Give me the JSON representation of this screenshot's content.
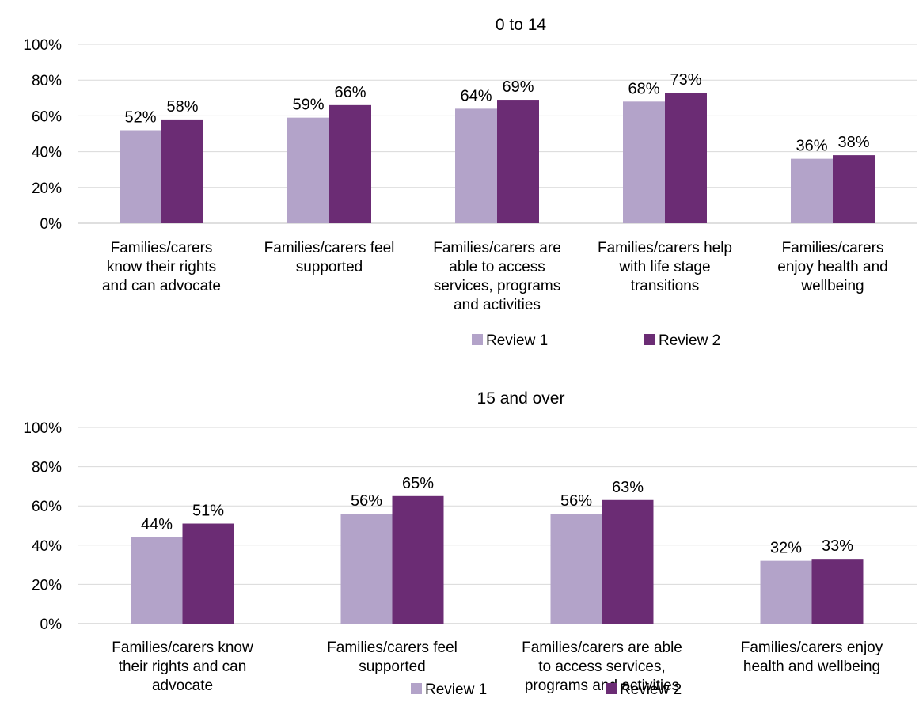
{
  "colors": {
    "review1": "#b3a3c9",
    "review2": "#6b2c74",
    "grid": "#d9d9d9",
    "axis": "#bfbfbf"
  },
  "chart_data": [
    {
      "type": "bar",
      "title": "0 to 14",
      "ylim": [
        0,
        100
      ],
      "y_ticks": [
        "0%",
        "20%",
        "40%",
        "60%",
        "80%",
        "100%"
      ],
      "grid": true,
      "legend_position": "bottom",
      "categories": [
        [
          "Families/carers",
          "know their rights",
          "and can advocate"
        ],
        [
          "Families/carers feel",
          "supported"
        ],
        [
          "Families/carers are",
          "able to access",
          "services, programs",
          "and activities"
        ],
        [
          "Families/carers help",
          "with life stage",
          "transitions"
        ],
        [
          "Families/carers",
          "enjoy health and",
          "wellbeing"
        ]
      ],
      "series": [
        {
          "name": "Review 1",
          "values": [
            52,
            59,
            64,
            68,
            36
          ],
          "labels": [
            "52%",
            "59%",
            "64%",
            "68%",
            "36%"
          ]
        },
        {
          "name": "Review 2",
          "values": [
            58,
            66,
            69,
            73,
            38
          ],
          "labels": [
            "58%",
            "66%",
            "69%",
            "73%",
            "38%"
          ]
        }
      ]
    },
    {
      "type": "bar",
      "title": "15 and over",
      "ylim": [
        0,
        100
      ],
      "y_ticks": [
        "0%",
        "20%",
        "40%",
        "60%",
        "80%",
        "100%"
      ],
      "grid": true,
      "legend_position": "bottom",
      "categories": [
        [
          "Families/carers know",
          "their rights and can",
          "advocate"
        ],
        [
          "Families/carers feel",
          "supported"
        ],
        [
          "Families/carers are able",
          "to access services,",
          "programs and activities"
        ],
        [
          "Families/carers enjoy",
          "health and wellbeing"
        ]
      ],
      "series": [
        {
          "name": "Review 1",
          "values": [
            44,
            56,
            56,
            32
          ],
          "labels": [
            "44%",
            "56%",
            "56%",
            "32%"
          ]
        },
        {
          "name": "Review 2",
          "values": [
            51,
            65,
            63,
            33
          ],
          "labels": [
            "51%",
            "65%",
            "63%",
            "33%"
          ]
        }
      ]
    }
  ]
}
